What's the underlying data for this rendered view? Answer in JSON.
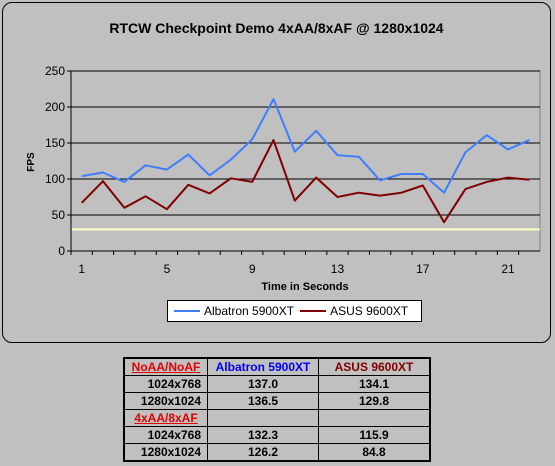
{
  "chart_data": {
    "type": "line",
    "title": "RTCW Checkpoint Demo 4xAA/8xAF @ 1280x1024",
    "xlabel": "Time in Seconds",
    "ylabel": "FPS",
    "x": [
      1,
      2,
      3,
      4,
      5,
      6,
      7,
      8,
      9,
      10,
      11,
      12,
      13,
      14,
      15,
      16,
      17,
      18,
      19,
      20,
      21,
      22
    ],
    "xticks": [
      1,
      5,
      9,
      13,
      17,
      21
    ],
    "ylim": [
      0,
      250
    ],
    "yticks": [
      0,
      50,
      100,
      150,
      200,
      250
    ],
    "reference_line": {
      "y": 30,
      "color": "#ffffc0"
    },
    "grid": true,
    "legend_position": "bottom",
    "plot_background": "#c0c0c0",
    "series": [
      {
        "name": "Albatron 5900XT",
        "color": "#3f7fff",
        "values": [
          104,
          109,
          96,
          119,
          113,
          134,
          105,
          127,
          155,
          211,
          138,
          167,
          133,
          131,
          98,
          107,
          107,
          81,
          137,
          161,
          141,
          154
        ]
      },
      {
        "name": "ASUS 9600XT",
        "color": "#800000",
        "values": [
          67,
          97,
          60,
          76,
          58,
          92,
          80,
          101,
          96,
          154,
          70,
          102,
          75,
          81,
          77,
          81,
          91,
          40,
          86,
          96,
          102,
          99
        ]
      }
    ]
  },
  "table": {
    "sections": [
      {
        "title": "NoAA/NoAF",
        "rows": [
          {
            "label": "1024x768",
            "values": [
              "137.0",
              "134.1"
            ]
          },
          {
            "label": "1280x1024",
            "values": [
              "136.5",
              "129.8"
            ]
          }
        ]
      },
      {
        "title": "4xAA/8xAF",
        "rows": [
          {
            "label": "1024x768",
            "values": [
              "132.3",
              "115.9"
            ]
          },
          {
            "label": "1280x1024",
            "values": [
              "126.2",
              "84.8"
            ]
          }
        ]
      }
    ],
    "columns": [
      {
        "label": "Albatron 5900XT",
        "color": "#0000ff"
      },
      {
        "label": "ASUS 9600XT",
        "color": "#800000"
      }
    ]
  }
}
